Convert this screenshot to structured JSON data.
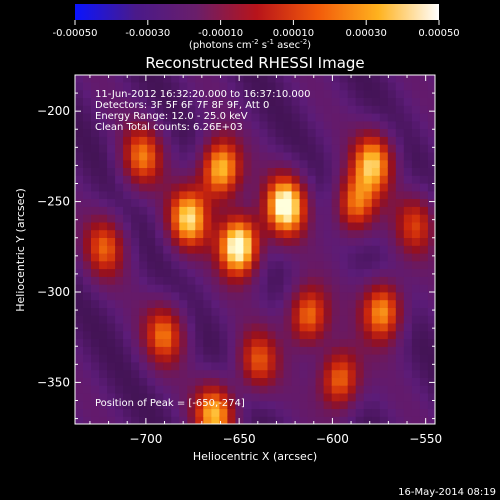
{
  "colorbar": {
    "ticks": [
      "-0.00050",
      "-0.00030",
      "-0.00010",
      "0.00010",
      "0.00030",
      "0.00050"
    ],
    "tick_values": [
      -0.0005,
      -0.0003,
      -0.0001,
      0.0001,
      0.0003,
      0.0005
    ],
    "units_main": "(photons cm",
    "units_sup1": "-2",
    "units_mid1": " s",
    "units_sup2": "-1",
    "units_mid2": " asec",
    "units_sup3": "-2",
    "units_end": ")",
    "range": [
      -0.0005,
      0.0005
    ],
    "colors": [
      "#0a14ff",
      "#4a1a8a",
      "#6a1e6a",
      "#b8141a",
      "#f25a0a",
      "#ffb21e",
      "#ffffff"
    ]
  },
  "chart_data": {
    "type": "heatmap",
    "title": "Reconstructed RHESSI Image",
    "xlabel": "Heliocentric X (arcsec)",
    "ylabel": "Heliocentric Y (arcsec)",
    "xlim": [
      -738,
      -545
    ],
    "ylim": [
      -373,
      -180
    ],
    "x_ticks": [
      {
        "value": -700,
        "label": "−700"
      },
      {
        "value": -650,
        "label": "−650"
      },
      {
        "value": -600,
        "label": "−600"
      },
      {
        "value": -550,
        "label": "−550"
      }
    ],
    "y_ticks": [
      {
        "value": -200,
        "label": "−200"
      },
      {
        "value": -250,
        "label": "−250"
      },
      {
        "value": -300,
        "label": "−300"
      },
      {
        "value": -350,
        "label": "−350"
      }
    ],
    "annotations": [
      "11-Jun-2012 16:32:20.000 to 16:37:10.000",
      "Detectors: 3F 5F 6F 7F 8F 9F, Att 0",
      "Energy Range: 12.0 - 25.0 keV",
      "Clean     Total counts: 6.26E+03"
    ],
    "peak_label": "Position of Peak = [-650,-274]",
    "peak": [
      -650,
      -274
    ],
    "bright_sources": [
      {
        "x": -650,
        "y": -274,
        "level": 1.0
      },
      {
        "x": -625,
        "y": -252,
        "level": 0.9
      },
      {
        "x": -660,
        "y": -232,
        "level": 0.8
      },
      {
        "x": -677,
        "y": -259,
        "level": 0.75
      },
      {
        "x": -578,
        "y": -228,
        "level": 0.7
      },
      {
        "x": -573,
        "y": -310,
        "level": 0.7
      },
      {
        "x": -588,
        "y": -252,
        "level": 0.6
      },
      {
        "x": -613,
        "y": -313,
        "level": 0.65
      },
      {
        "x": -596,
        "y": -348,
        "level": 0.65
      },
      {
        "x": -663,
        "y": -367,
        "level": 0.7
      },
      {
        "x": -702,
        "y": -225,
        "level": 0.55
      },
      {
        "x": -722,
        "y": -275,
        "level": 0.5
      },
      {
        "x": -690,
        "y": -323,
        "level": 0.55
      },
      {
        "x": -640,
        "y": -338,
        "level": 0.5
      },
      {
        "x": -555,
        "y": -262,
        "level": 0.45
      }
    ]
  },
  "footer": {
    "timestamp": "16-May-2014 08:19"
  }
}
